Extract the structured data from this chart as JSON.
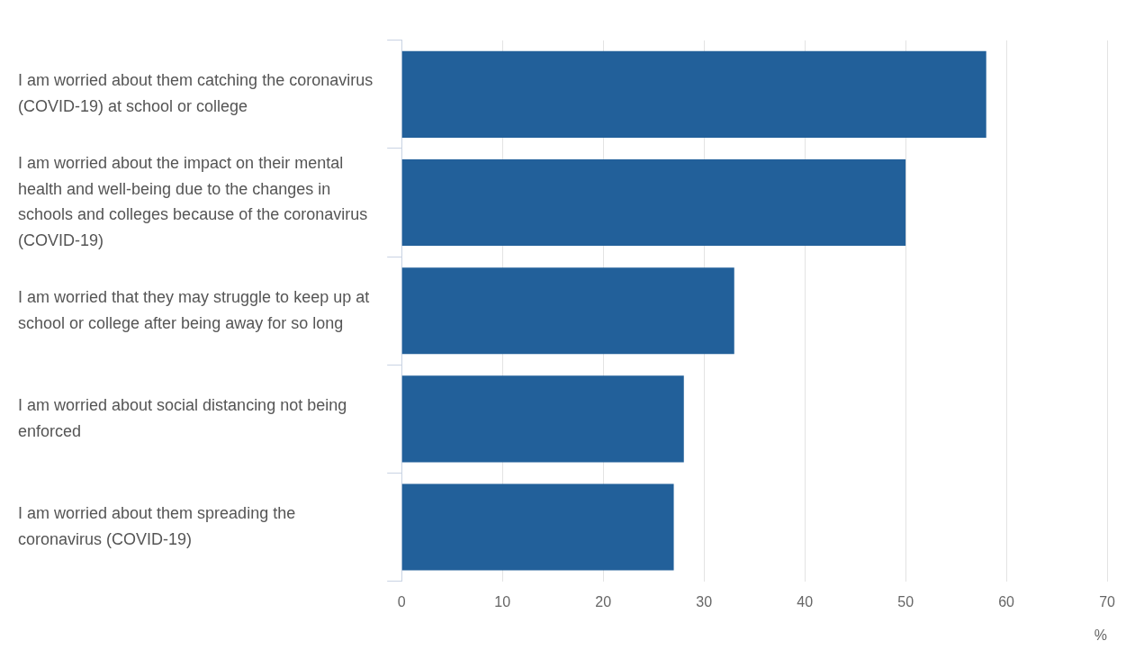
{
  "chart_data": {
    "type": "bar",
    "orientation": "horizontal",
    "categories": [
      "I am worried about them catching the coronavirus (COVID-19) at school or college",
      "I am worried about the impact on their mental health and well-being due to the changes in schools and colleges because of the coronavirus (COVID-19)",
      "I am worried that they may struggle to keep up at school or college after being away for so long",
      "I am worried about social distancing not being enforced",
      "I am worried about them spreading the coronavirus (COVID-19)"
    ],
    "values": [
      58,
      50,
      33,
      28,
      27
    ],
    "color": "#22609a",
    "xlim": [
      0,
      70
    ],
    "xticks": [
      0,
      10,
      20,
      30,
      40,
      50,
      60,
      70
    ],
    "xlabel": "%",
    "grid": "x",
    "legend": false
  }
}
